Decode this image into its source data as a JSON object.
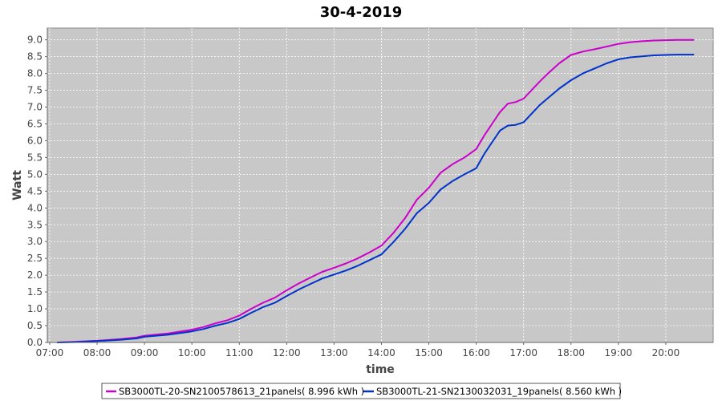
{
  "chart_data": {
    "type": "line",
    "title": "30-4-2019",
    "xlabel": "time",
    "ylabel": "Watt",
    "xlim": [
      "06:57",
      "21:00"
    ],
    "ylim": [
      0,
      9.35
    ],
    "x_ticks": [
      "07:00",
      "08:00",
      "09:00",
      "10:00",
      "11:00",
      "12:00",
      "13:00",
      "14:00",
      "15:00",
      "16:00",
      "17:00",
      "18:00",
      "19:00",
      "20:00"
    ],
    "y_ticks": [
      "0.0",
      "0.5",
      "1.0",
      "1.5",
      "2.0",
      "2.5",
      "3.0",
      "3.5",
      "4.0",
      "4.5",
      "5.0",
      "5.5",
      "6.0",
      "6.5",
      "7.0",
      "7.5",
      "8.0",
      "8.5",
      "9.0"
    ],
    "grid": true,
    "background": "#c8c8c8",
    "legend_position": "bottom",
    "series": [
      {
        "name": "SB3000TL-20-SN2100578613_21panels( 8.996 kWh )",
        "color": "#cc00cc",
        "x": [
          "07:10",
          "07:30",
          "08:00",
          "08:30",
          "08:50",
          "09:00",
          "09:30",
          "10:00",
          "10:15",
          "10:30",
          "10:45",
          "11:00",
          "11:15",
          "11:30",
          "11:45",
          "12:00",
          "12:15",
          "12:30",
          "12:45",
          "13:00",
          "13:15",
          "13:30",
          "13:45",
          "14:00",
          "14:15",
          "14:30",
          "14:45",
          "15:00",
          "15:15",
          "15:30",
          "15:45",
          "16:00",
          "16:10",
          "16:20",
          "16:30",
          "16:40",
          "16:50",
          "17:00",
          "17:10",
          "17:20",
          "17:30",
          "17:45",
          "18:00",
          "18:15",
          "18:30",
          "18:45",
          "19:00",
          "19:15",
          "19:30",
          "19:45",
          "20:00",
          "20:15",
          "20:35"
        ],
        "values": [
          0.0,
          0.02,
          0.05,
          0.1,
          0.15,
          0.2,
          0.27,
          0.38,
          0.46,
          0.57,
          0.66,
          0.8,
          1.0,
          1.18,
          1.33,
          1.55,
          1.75,
          1.93,
          2.1,
          2.22,
          2.35,
          2.5,
          2.68,
          2.88,
          3.25,
          3.7,
          4.25,
          4.6,
          5.05,
          5.3,
          5.5,
          5.75,
          6.15,
          6.5,
          6.85,
          7.1,
          7.15,
          7.25,
          7.5,
          7.75,
          7.98,
          8.3,
          8.55,
          8.65,
          8.72,
          8.8,
          8.88,
          8.93,
          8.96,
          8.98,
          8.99,
          9.0,
          9.0
        ]
      },
      {
        "name": "SB3000TL-21-SN2130032031_19panels( 8.560 kWh )",
        "color": "#0033cc",
        "x": [
          "07:10",
          "07:30",
          "08:00",
          "08:30",
          "08:50",
          "09:00",
          "09:30",
          "10:00",
          "10:15",
          "10:30",
          "10:45",
          "11:00",
          "11:15",
          "11:30",
          "11:45",
          "12:00",
          "12:15",
          "12:30",
          "12:45",
          "13:00",
          "13:15",
          "13:30",
          "13:45",
          "14:00",
          "14:15",
          "14:30",
          "14:45",
          "15:00",
          "15:15",
          "15:30",
          "15:45",
          "16:00",
          "16:10",
          "16:20",
          "16:30",
          "16:40",
          "16:50",
          "17:00",
          "17:10",
          "17:20",
          "17:30",
          "17:45",
          "18:00",
          "18:15",
          "18:30",
          "18:45",
          "19:00",
          "19:15",
          "19:30",
          "19:45",
          "20:00",
          "20:15",
          "20:35"
        ],
        "values": [
          0.0,
          0.01,
          0.04,
          0.08,
          0.12,
          0.17,
          0.23,
          0.33,
          0.4,
          0.5,
          0.58,
          0.7,
          0.88,
          1.05,
          1.18,
          1.38,
          1.57,
          1.74,
          1.9,
          2.02,
          2.14,
          2.28,
          2.45,
          2.62,
          2.98,
          3.38,
          3.85,
          4.15,
          4.55,
          4.8,
          5.0,
          5.18,
          5.6,
          5.95,
          6.3,
          6.45,
          6.47,
          6.55,
          6.8,
          7.05,
          7.25,
          7.55,
          7.8,
          8.0,
          8.15,
          8.3,
          8.42,
          8.48,
          8.51,
          8.54,
          8.55,
          8.56,
          8.56
        ]
      }
    ]
  }
}
